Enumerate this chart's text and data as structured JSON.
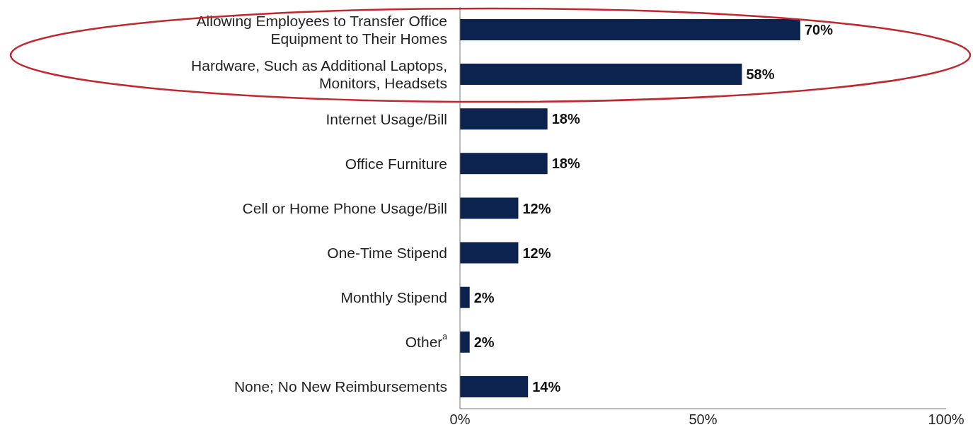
{
  "chart_data": {
    "type": "bar",
    "orientation": "horizontal",
    "categories": [
      "Allowing Employees to Transfer Office Equipment to Their Homes",
      "Hardware, Such as Additional Laptops, Monitors, Headsets",
      "Internet Usage/Bill",
      "Office Furniture",
      "Cell or Home Phone Usage/Bill",
      "One-Time Stipend",
      "Monthly Stipend",
      "Other$^{a}$",
      "None; No New Reimbursements"
    ],
    "values": [
      70,
      58,
      18,
      18,
      12,
      12,
      2,
      2,
      14
    ],
    "value_labels": [
      "70%",
      "58%",
      "18%",
      "18%",
      "12%",
      "12%",
      "2%",
      "2%",
      "14%"
    ],
    "color": "#0c2350",
    "xlim": [
      0,
      100
    ],
    "xticks": [
      {
        "value": 0,
        "label": "0%"
      },
      {
        "value": 50,
        "label": "50%"
      },
      {
        "value": 100,
        "label": "100%"
      }
    ],
    "grid": false,
    "legend": false
  }
}
